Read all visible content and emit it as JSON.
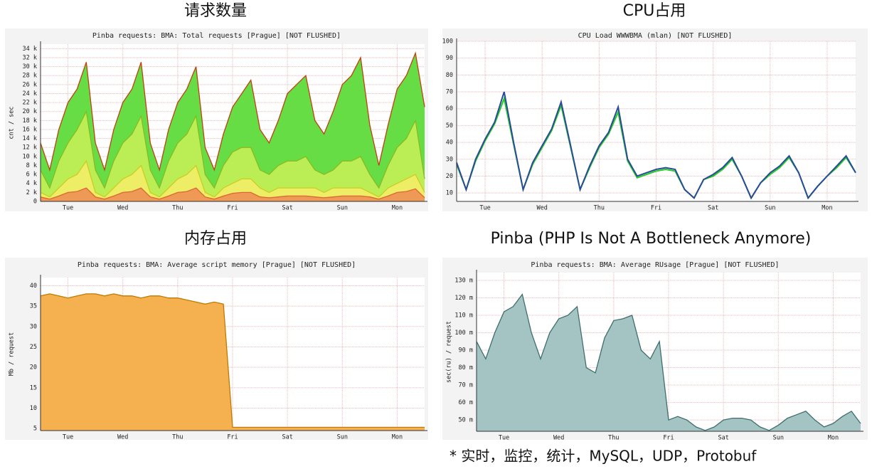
{
  "headings": [
    "请求数量",
    "CPU占用",
    "内存占用",
    "Pinba (PHP Is Not A Bottleneck Anymore)"
  ],
  "footnote": "* 实时，监控，统计，MySQL，UDP，Protobuf",
  "chart_data": [
    {
      "type": "area",
      "title": "Pinba requests: BMA: Total requests [Prague] [NOT FLUSHED]",
      "y_label": "cnt / sec",
      "x": [
        0,
        4,
        8,
        12,
        16,
        20,
        24,
        28,
        32,
        36,
        40,
        44,
        48,
        52,
        56,
        60,
        64,
        68,
        72,
        76,
        80,
        84,
        88,
        92,
        96,
        100,
        104,
        108,
        112,
        116,
        120,
        124,
        128,
        132,
        136,
        140,
        144,
        148,
        152,
        156,
        160,
        164,
        168
      ],
      "xlim": [
        0,
        168
      ],
      "xticks": [
        {
          "value": 12,
          "label": "Tue"
        },
        {
          "value": 36,
          "label": "Wed"
        },
        {
          "value": 60,
          "label": "Thu"
        },
        {
          "value": 84,
          "label": "Fri"
        },
        {
          "value": 108,
          "label": "Sat"
        },
        {
          "value": 132,
          "label": "Sun"
        },
        {
          "value": 156,
          "label": "Mon"
        }
      ],
      "ylim": [
        0,
        35000
      ],
      "yticks": [
        0,
        {
          "value": 2000,
          "label": "2 k"
        },
        {
          "value": 4000,
          "label": "4 k"
        },
        {
          "value": 6000,
          "label": "6 k"
        },
        {
          "value": 8000,
          "label": "8 k"
        },
        {
          "value": 10000,
          "label": "10 k"
        },
        {
          "value": 12000,
          "label": "12 k"
        },
        {
          "value": 14000,
          "label": "14 k"
        },
        {
          "value": 16000,
          "label": "16 k"
        },
        {
          "value": 18000,
          "label": "18 k"
        },
        {
          "value": 20000,
          "label": "20 k"
        },
        {
          "value": 22000,
          "label": "22 k"
        },
        {
          "value": 24000,
          "label": "24 k"
        },
        {
          "value": 26000,
          "label": "26 k"
        },
        {
          "value": 28000,
          "label": "28 k"
        },
        {
          "value": 30000,
          "label": "30 k"
        },
        {
          "value": 32000,
          "label": "32 k"
        },
        {
          "value": 34000,
          "label": "34 k"
        }
      ],
      "grid": true,
      "series": [
        {
          "color": "#c04010",
          "fill": "#66dd44",
          "values": [
            13000,
            7000,
            16000,
            22000,
            25000,
            31000,
            13000,
            7000,
            16000,
            22000,
            25000,
            31000,
            13000,
            7000,
            16000,
            22000,
            25000,
            30000,
            12000,
            7000,
            15000,
            21000,
            24000,
            27000,
            16000,
            13000,
            18000,
            24000,
            26000,
            28000,
            18000,
            15000,
            20000,
            26000,
            28000,
            32000,
            17000,
            8000,
            17000,
            25000,
            28000,
            33000,
            21000
          ]
        },
        {
          "color": "#88bb22",
          "fill": "#bbee55",
          "values": [
            7000,
            3000,
            9000,
            13000,
            16000,
            20000,
            7000,
            3000,
            9000,
            13000,
            15000,
            19000,
            7000,
            3000,
            9000,
            13000,
            15000,
            19000,
            6000,
            3000,
            8000,
            11000,
            12000,
            12000,
            7000,
            6000,
            8000,
            9000,
            9000,
            10000,
            7000,
            6000,
            7000,
            9000,
            9000,
            10000,
            6000,
            3000,
            8000,
            12000,
            14000,
            18000,
            5000
          ]
        },
        {
          "color": "#cccc22",
          "fill": "#eeee66",
          "values": [
            2000,
            1000,
            3000,
            5000,
            6000,
            9000,
            2000,
            1000,
            3000,
            5000,
            6000,
            8000,
            2000,
            1000,
            3000,
            5000,
            6000,
            8000,
            2000,
            1000,
            3000,
            4000,
            5000,
            5000,
            3000,
            2000,
            3000,
            3000,
            3000,
            3000,
            3000,
            2000,
            3000,
            3000,
            3000,
            3000,
            2000,
            1000,
            3000,
            4000,
            5000,
            6000,
            2000
          ]
        },
        {
          "color": "#dd6633",
          "fill": "#ee9955",
          "values": [
            1000,
            500,
            1200,
            2000,
            2200,
            3000,
            1000,
            500,
            1200,
            2000,
            2200,
            3000,
            1000,
            500,
            1200,
            2000,
            2200,
            3000,
            1000,
            500,
            1200,
            1800,
            2000,
            2000,
            1000,
            800,
            1000,
            1200,
            1200,
            1200,
            1000,
            800,
            1000,
            1200,
            1200,
            1200,
            1000,
            500,
            1200,
            2000,
            2200,
            2800,
            800
          ]
        }
      ]
    },
    {
      "type": "line",
      "title": "CPU Load WWWBMA (mlan) [NOT FLUSHED]",
      "x": [
        0,
        4,
        8,
        12,
        16,
        20,
        24,
        28,
        32,
        36,
        40,
        44,
        48,
        52,
        56,
        60,
        64,
        68,
        72,
        76,
        80,
        84,
        88,
        92,
        96,
        100,
        104,
        108,
        112,
        116,
        120,
        124,
        128,
        132,
        136,
        140,
        144,
        148,
        152,
        156,
        160,
        164,
        168
      ],
      "xlim": [
        0,
        168
      ],
      "xticks": [
        {
          "value": 12,
          "label": "Tue"
        },
        {
          "value": 36,
          "label": "Wed"
        },
        {
          "value": 60,
          "label": "Thu"
        },
        {
          "value": 84,
          "label": "Fri"
        },
        {
          "value": 108,
          "label": "Sat"
        },
        {
          "value": 132,
          "label": "Sun"
        },
        {
          "value": 156,
          "label": "Mon"
        }
      ],
      "ylim": [
        5,
        100
      ],
      "yticks": [
        10,
        20,
        30,
        40,
        50,
        60,
        70,
        80,
        90,
        100
      ],
      "grid": true,
      "series": [
        {
          "color": "#22cc22",
          "values": [
            27,
            12,
            29,
            41,
            51,
            66,
            39,
            12,
            27,
            37,
            47,
            62,
            37,
            12,
            25,
            37,
            45,
            58,
            29,
            19,
            21,
            23,
            24,
            23,
            12,
            7,
            18,
            20,
            24,
            30,
            20,
            7,
            16,
            21,
            25,
            31,
            22,
            7,
            14,
            20,
            25,
            31,
            22
          ]
        },
        {
          "color": "#2a4a9a",
          "values": [
            28,
            12,
            30,
            42,
            52,
            70,
            40,
            12,
            28,
            38,
            48,
            64,
            38,
            12,
            26,
            38,
            46,
            61,
            30,
            20,
            22,
            24,
            25,
            24,
            12,
            7,
            18,
            21,
            25,
            31,
            20,
            7,
            16,
            22,
            26,
            32,
            22,
            7,
            14,
            20,
            26,
            32,
            22
          ]
        }
      ]
    },
    {
      "type": "area",
      "title": "Pinba requests: BMA: Average script memory [Prague] [NOT FLUSHED]",
      "y_label": "Mb / request",
      "x": [
        0,
        4,
        8,
        12,
        16,
        20,
        24,
        28,
        32,
        36,
        40,
        44,
        48,
        52,
        56,
        60,
        64,
        68,
        72,
        76,
        80,
        84,
        88,
        92,
        96,
        100,
        104,
        108,
        112,
        116,
        120,
        124,
        128,
        132,
        136,
        140,
        144,
        148,
        152,
        156,
        160,
        164,
        168
      ],
      "xlim": [
        0,
        168
      ],
      "xticks": [
        {
          "value": 12,
          "label": "Tue"
        },
        {
          "value": 36,
          "label": "Wed"
        },
        {
          "value": 60,
          "label": "Thu"
        },
        {
          "value": 84,
          "label": "Fri"
        },
        {
          "value": 108,
          "label": "Sat"
        },
        {
          "value": 132,
          "label": "Sun"
        },
        {
          "value": 156,
          "label": "Mon"
        }
      ],
      "ylim": [
        4.5,
        42
      ],
      "yticks": [
        5,
        10,
        15,
        20,
        25,
        30,
        35,
        40
      ],
      "grid": true,
      "series": [
        {
          "color": "#c07a00",
          "fill": "#f5b050",
          "values": [
            37.5,
            38,
            37.5,
            37,
            37.5,
            38,
            38,
            37.5,
            38,
            37.5,
            37.5,
            37,
            37.5,
            37.5,
            37,
            37,
            36.5,
            36,
            35.5,
            36,
            35.5,
            5.3,
            5.3,
            5.3,
            5.3,
            5.3,
            5.3,
            5.3,
            5.3,
            5.3,
            5.3,
            5.3,
            5.3,
            5.3,
            5.3,
            5.3,
            5.3,
            5.3,
            5.3,
            5.3,
            5.3,
            5.3,
            5.3
          ]
        }
      ]
    },
    {
      "type": "area",
      "title": "Pinba requests: BMA: Average RUsage [Prague] [NOT FLUSHED]",
      "y_label": "sec(ru) / request",
      "x": [
        0,
        4,
        8,
        12,
        16,
        20,
        24,
        28,
        32,
        36,
        40,
        44,
        48,
        52,
        56,
        60,
        64,
        68,
        72,
        76,
        80,
        84,
        88,
        92,
        96,
        100,
        104,
        108,
        112,
        116,
        120,
        124,
        128,
        132,
        136,
        140,
        144,
        148,
        152,
        156,
        160,
        164,
        168
      ],
      "xlim": [
        0,
        168
      ],
      "xticks": [
        {
          "value": 12,
          "label": "Tue"
        },
        {
          "value": 36,
          "label": "Wed"
        },
        {
          "value": 60,
          "label": "Thu"
        },
        {
          "value": 84,
          "label": "Fri"
        },
        {
          "value": 108,
          "label": "Sat"
        },
        {
          "value": 132,
          "label": "Sun"
        },
        {
          "value": 156,
          "label": "Mon"
        }
      ],
      "ylim": [
        0.0435,
        0.1345
      ],
      "yticks": [
        {
          "value": 0.05,
          "label": "50 m"
        },
        {
          "value": 0.06,
          "label": "60 m"
        },
        {
          "value": 0.07,
          "label": "70 m"
        },
        {
          "value": 0.08,
          "label": "80 m"
        },
        {
          "value": 0.09,
          "label": "90 m"
        },
        {
          "value": 0.1,
          "label": "100 m"
        },
        {
          "value": 0.11,
          "label": "110 m"
        },
        {
          "value": 0.12,
          "label": "120 m"
        },
        {
          "value": 0.13,
          "label": "130 m"
        }
      ],
      "grid": true,
      "series": [
        {
          "color": "#3e6e6e",
          "fill": "#a4c4c4",
          "values": [
            0.095,
            0.085,
            0.1,
            0.112,
            0.115,
            0.122,
            0.1,
            0.085,
            0.1,
            0.108,
            0.11,
            0.115,
            0.08,
            0.077,
            0.097,
            0.107,
            0.108,
            0.11,
            0.09,
            0.085,
            0.095,
            0.05,
            0.052,
            0.05,
            0.046,
            0.044,
            0.046,
            0.05,
            0.051,
            0.051,
            0.05,
            0.046,
            0.044,
            0.047,
            0.051,
            0.053,
            0.055,
            0.05,
            0.046,
            0.048,
            0.052,
            0.055,
            0.048
          ]
        }
      ]
    }
  ]
}
